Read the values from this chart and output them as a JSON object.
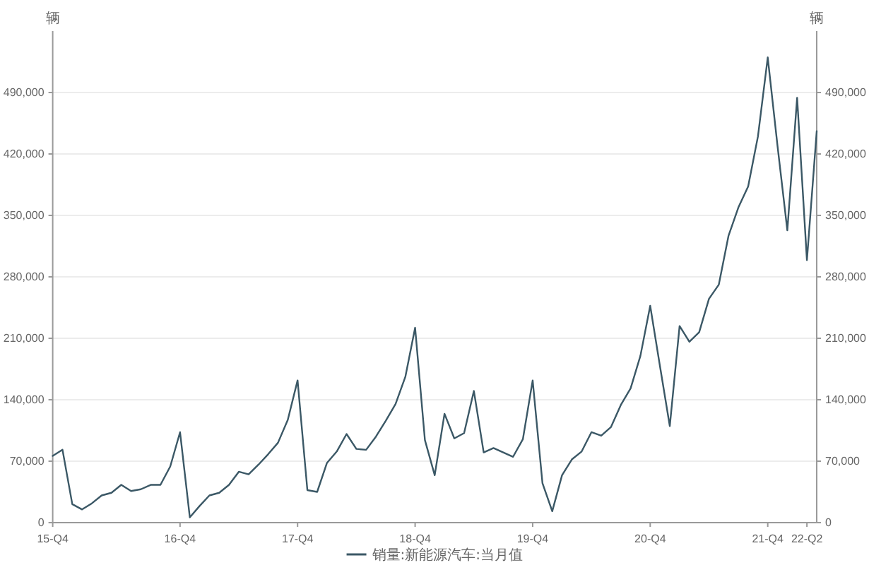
{
  "chart_data": {
    "type": "line",
    "ylabel": "辆",
    "y2label": "辆",
    "categories": [
      "15-Q4",
      null,
      null,
      null,
      null,
      null,
      null,
      null,
      null,
      null,
      null,
      null,
      null,
      "16-Q4",
      null,
      null,
      null,
      null,
      null,
      null,
      null,
      null,
      null,
      null,
      null,
      "17-Q4",
      null,
      null,
      null,
      null,
      null,
      null,
      null,
      null,
      null,
      null,
      null,
      "18-Q4",
      null,
      null,
      null,
      null,
      null,
      null,
      null,
      null,
      null,
      null,
      null,
      "19-Q4",
      null,
      null,
      null,
      null,
      null,
      null,
      null,
      null,
      null,
      null,
      null,
      "20-Q4",
      null,
      null,
      null,
      null,
      null,
      null,
      null,
      null,
      null,
      null,
      null,
      "21-Q4",
      null,
      null,
      null,
      "22-Q2",
      null
    ],
    "series": [
      {
        "name": "销量:新能源汽车:当月值",
        "color": "#3b5866",
        "values": [
          76000,
          83000,
          21000,
          15000,
          22000,
          31000,
          34000,
          43000,
          36000,
          38000,
          43000,
          43000,
          64000,
          103000,
          6000,
          19000,
          31000,
          34000,
          43000,
          58000,
          55000,
          66000,
          78000,
          91000,
          117000,
          162000,
          37000,
          35000,
          68000,
          81000,
          101000,
          84000,
          83000,
          98000,
          116000,
          135000,
          166000,
          222000,
          94000,
          54000,
          124000,
          96000,
          102000,
          150000,
          80000,
          85000,
          80000,
          75000,
          95000,
          162000,
          45000,
          13000,
          54000,
          72000,
          81000,
          103000,
          99000,
          109000,
          134000,
          153000,
          190000,
          247000,
          178000,
          110000,
          224000,
          206000,
          217000,
          255000,
          271000,
          327000,
          359000,
          383000,
          440000,
          530000,
          429000,
          333000,
          484000,
          299000,
          446000
        ]
      }
    ],
    "ylim": [
      0,
      560000
    ],
    "yticks": [
      0,
      {
        "value": 70000,
        "label": "70,000"
      },
      {
        "value": 140000,
        "label": "140,000"
      },
      {
        "value": 210000,
        "label": "210,000"
      },
      {
        "value": 280000,
        "label": "280,000"
      },
      {
        "value": 350000,
        "label": "350,000"
      },
      {
        "value": 420000,
        "label": "420,000"
      },
      {
        "value": 490000,
        "label": "490,000"
      }
    ],
    "y2lim": [
      0,
      560000
    ],
    "y2ticks": [
      0,
      {
        "value": 70000,
        "label": "70,000"
      },
      {
        "value": 140000,
        "label": "140,000"
      },
      {
        "value": 210000,
        "label": "210,000"
      },
      {
        "value": 280000,
        "label": "280,000"
      },
      {
        "value": 350000,
        "label": "350,000"
      },
      {
        "value": 420000,
        "label": "420,000"
      },
      {
        "value": 490000,
        "label": "490,000"
      }
    ],
    "grid": "y",
    "legend": "bottom"
  }
}
